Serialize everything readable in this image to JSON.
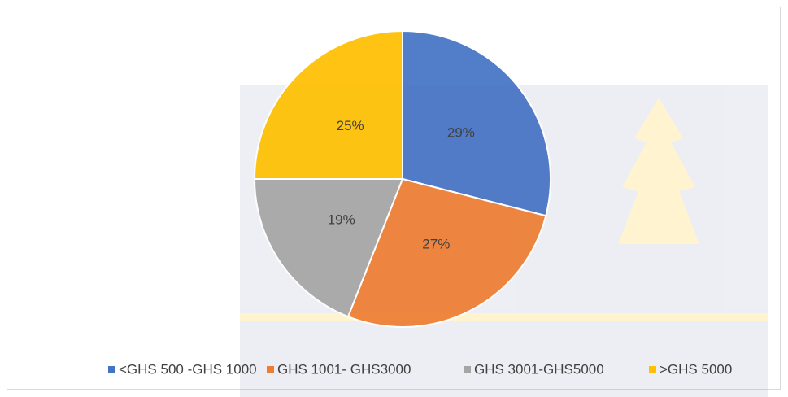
{
  "chart_data": {
    "type": "pie",
    "categories": [
      "<GHS 500 -GHS 1000",
      "GHS 1001- GHS3000",
      "GHS 3001-GHS5000",
      ">GHS 5000"
    ],
    "values": [
      29,
      27,
      19,
      25
    ],
    "value_labels": [
      "29%",
      "27%",
      "19%",
      "25%"
    ],
    "colors": [
      "#4472c4",
      "#ed7d31",
      "#a5a5a5",
      "#ffc000"
    ],
    "legend": "bottom"
  }
}
